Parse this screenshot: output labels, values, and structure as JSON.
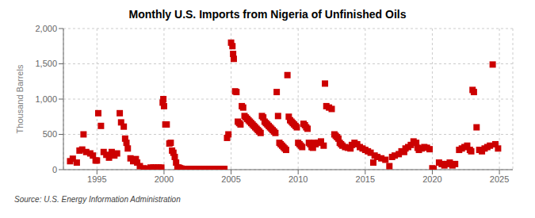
{
  "chart_data": {
    "type": "scatter",
    "title": "Monthly U.S. Imports from Nigeria of Unfinished Oils",
    "ylabel": "Thousand Barrels",
    "annotations": [
      "Source: U.S. Energy Information Administration"
    ],
    "color": "#cc0000",
    "marker": "square",
    "grid": true,
    "xlim": [
      1992.5,
      2026.0
    ],
    "ylim": [
      0,
      2000
    ],
    "xticks": [
      1995,
      2000,
      2005,
      2010,
      2015,
      2020,
      2025
    ],
    "yticks": [
      0,
      500,
      {
        "value": 1000,
        "label": "1,000"
      },
      {
        "value": 1500,
        "label": "1,500"
      },
      {
        "value": 2000,
        "label": "2,000"
      }
    ],
    "x": [
      1993.0,
      1993.2,
      1993.5,
      1993.7,
      1993.9,
      1994.0,
      1994.2,
      1994.5,
      1994.7,
      1994.9,
      1995.0,
      1995.1,
      1995.3,
      1995.5,
      1995.7,
      1995.9,
      1996.1,
      1996.3,
      1996.5,
      1996.7,
      1996.8,
      1997.0,
      1997.1,
      1997.2,
      1997.3,
      1997.5,
      1997.7,
      1997.9,
      1998.0,
      1998.2,
      1998.5,
      1998.8,
      1999.0,
      1999.2,
      1999.4,
      1999.6,
      1999.8,
      1999.9,
      1999.95,
      2000.0,
      2000.1,
      2000.2,
      2000.4,
      2000.5,
      2000.6,
      2000.7,
      2000.8,
      2000.9,
      2001.0,
      2001.1,
      2001.2,
      2001.3,
      2001.5,
      2001.7,
      2001.9,
      2002.0,
      2002.1,
      2002.2,
      2002.4,
      2002.6,
      2002.8,
      2003.0,
      2003.2,
      2003.4,
      2003.6,
      2003.8,
      2004.0,
      2004.2,
      2004.4,
      2004.5,
      2004.7,
      2004.8,
      2005.0,
      2005.1,
      2005.15,
      2005.2,
      2005.3,
      2005.4,
      2005.5,
      2005.6,
      2005.7,
      2005.8,
      2005.9,
      2006.0,
      2006.1,
      2006.2,
      2006.3,
      2006.4,
      2006.5,
      2006.6,
      2006.7,
      2006.8,
      2006.9,
      2007.0,
      2007.1,
      2007.2,
      2007.3,
      2007.4,
      2007.5,
      2007.6,
      2007.7,
      2007.8,
      2007.9,
      2008.0,
      2008.1,
      2008.2,
      2008.3,
      2008.4,
      2008.5,
      2008.6,
      2008.7,
      2008.8,
      2008.9,
      2009.0,
      2009.1,
      2009.2,
      2009.3,
      2009.4,
      2009.5,
      2009.6,
      2009.7,
      2009.8,
      2009.9,
      2010.0,
      2010.1,
      2010.2,
      2010.3,
      2010.4,
      2010.5,
      2010.6,
      2010.7,
      2010.8,
      2010.9,
      2011.0,
      2011.1,
      2011.2,
      2011.3,
      2011.5,
      2011.7,
      2011.9,
      2012.0,
      2012.1,
      2012.3,
      2012.5,
      2012.7,
      2012.8,
      2012.9,
      2013.0,
      2013.1,
      2013.2,
      2013.3,
      2013.5,
      2013.7,
      2013.9,
      2014.0,
      2014.2,
      2014.4,
      2014.6,
      2014.8,
      2015.0,
      2015.2,
      2015.4,
      2015.6,
      2015.7,
      2015.9,
      2016.2,
      2016.5,
      2016.8,
      2017.0,
      2017.2,
      2017.5,
      2017.7,
      2017.9,
      2018.0,
      2018.2,
      2018.4,
      2018.6,
      2018.8,
      2018.9,
      2019.0,
      2019.2,
      2019.4,
      2019.6,
      2019.8,
      2020.0,
      2020.1,
      2020.5,
      2020.7,
      2020.9,
      2021.1,
      2021.3,
      2021.5,
      2021.7,
      2022.0,
      2022.2,
      2022.4,
      2022.6,
      2022.8,
      2022.9,
      2023.0,
      2023.1,
      2023.3,
      2023.5,
      2023.7,
      2023.9,
      2024.1,
      2024.3,
      2024.5,
      2024.7,
      2024.9
    ],
    "values": [
      120,
      155,
      100,
      270,
      285,
      500,
      250,
      230,
      200,
      130,
      130,
      800,
      620,
      250,
      210,
      170,
      250,
      200,
      230,
      800,
      670,
      610,
      440,
      380,
      300,
      160,
      120,
      150,
      100,
      50,
      20,
      10,
      30,
      30,
      30,
      30,
      30,
      950,
      1000,
      900,
      640,
      640,
      370,
      380,
      270,
      240,
      180,
      100,
      30,
      30,
      20,
      15,
      10,
      10,
      10,
      10,
      10,
      10,
      10,
      10,
      10,
      10,
      10,
      10,
      10,
      10,
      10,
      10,
      10,
      10,
      450,
      500,
      1800,
      1750,
      1640,
      1570,
      1110,
      1100,
      680,
      660,
      640,
      900,
      880,
      760,
      740,
      720,
      700,
      680,
      660,
      640,
      620,
      600,
      580,
      560,
      540,
      520,
      760,
      740,
      680,
      660,
      640,
      620,
      600,
      580,
      560,
      540,
      520,
      1100,
      760,
      380,
      360,
      340,
      320,
      300,
      280,
      1340,
      750,
      700,
      680,
      660,
      640,
      620,
      600,
      380,
      360,
      340,
      320,
      650,
      630,
      600,
      580,
      380,
      360,
      320,
      310,
      380,
      360,
      380,
      400,
      340,
      1220,
      900,
      880,
      860,
      500,
      480,
      460,
      440,
      380,
      360,
      340,
      320,
      310,
      300,
      350,
      380,
      360,
      320,
      300,
      280,
      260,
      240,
      100,
      200,
      180,
      160,
      140,
      50,
      180,
      200,
      220,
      260,
      250,
      300,
      320,
      350,
      400,
      380,
      310,
      280,
      300,
      320,
      310,
      290,
      20,
      10,
      100,
      80,
      60,
      80,
      100,
      60,
      80,
      280,
      300,
      320,
      340,
      280,
      260,
      1130,
      1100,
      600,
      280,
      260,
      300,
      320,
      340,
      1490,
      360,
      300
    ]
  }
}
